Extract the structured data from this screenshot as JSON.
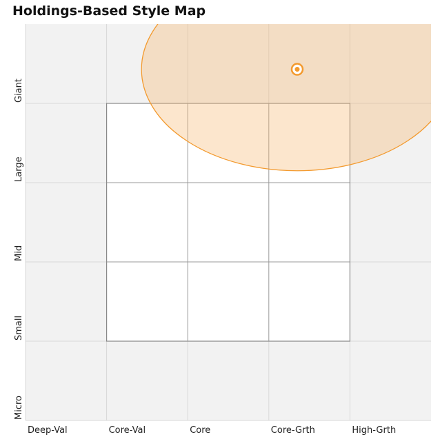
{
  "chart_data": {
    "type": "style-map",
    "title": "Holdings-Based Style Map",
    "xlim": [
      0,
      5
    ],
    "xticks": [
      {
        "value": 0,
        "label": "Deep-Val"
      },
      {
        "value": 1,
        "label": "Core-Val"
      },
      {
        "value": 2,
        "label": "Core"
      },
      {
        "value": 3,
        "label": "Core-Grth"
      },
      {
        "value": 4,
        "label": "High-Grth"
      }
    ],
    "ylim": [
      0,
      5
    ],
    "yticks": [
      {
        "value": 0,
        "label": "Micro"
      },
      {
        "value": 1,
        "label": "Small"
      },
      {
        "value": 2,
        "label": "Mid"
      },
      {
        "value": 3,
        "label": "Large"
      },
      {
        "value": 4,
        "label": "Giant"
      }
    ],
    "point": {
      "x": 3.35,
      "y": 4.43,
      "color": "#f39a2e"
    },
    "zone": {
      "x": 3.35,
      "y": 4.43,
      "rx": 1.92,
      "ry": 1.28,
      "color": "#f5b870"
    },
    "grid": true
  }
}
